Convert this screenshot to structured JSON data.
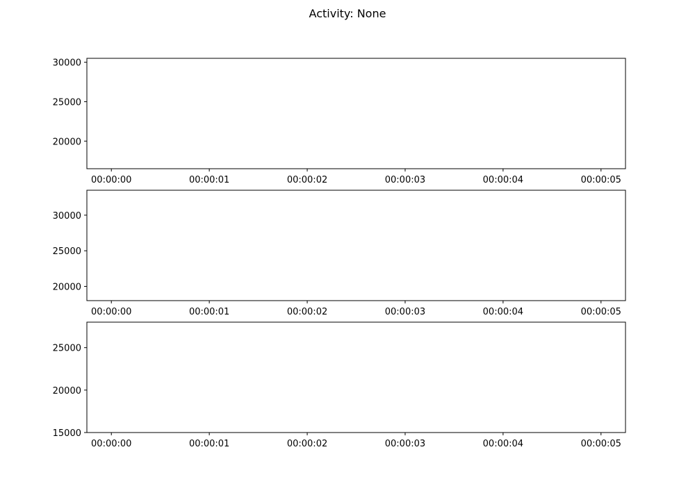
{
  "figure": {
    "title": "Activity: None"
  },
  "chart_data": [
    {
      "type": "line",
      "title": "",
      "xlabel": "",
      "ylabel": "",
      "x_ticks": [
        "00:00:00",
        "00:00:01",
        "00:00:02",
        "00:00:03",
        "00:00:04",
        "00:00:05"
      ],
      "xlim": [
        -0.25,
        5.25
      ],
      "y_ticks": [
        20000,
        25000,
        30000
      ],
      "ylim": [
        16500,
        30500
      ],
      "series": [],
      "grid": false
    },
    {
      "type": "line",
      "title": "",
      "xlabel": "",
      "ylabel": "",
      "x_ticks": [
        "00:00:00",
        "00:00:01",
        "00:00:02",
        "00:00:03",
        "00:00:04",
        "00:00:05"
      ],
      "xlim": [
        -0.25,
        5.25
      ],
      "y_ticks": [
        20000,
        25000,
        30000
      ],
      "ylim": [
        18000,
        33500
      ],
      "series": [],
      "grid": false
    },
    {
      "type": "line",
      "title": "",
      "xlabel": "",
      "ylabel": "",
      "x_ticks": [
        "00:00:00",
        "00:00:01",
        "00:00:02",
        "00:00:03",
        "00:00:04",
        "00:00:05"
      ],
      "xlim": [
        -0.25,
        5.25
      ],
      "y_ticks": [
        15000,
        20000,
        25000
      ],
      "ylim": [
        15000,
        28000
      ],
      "series": [],
      "grid": false
    }
  ]
}
